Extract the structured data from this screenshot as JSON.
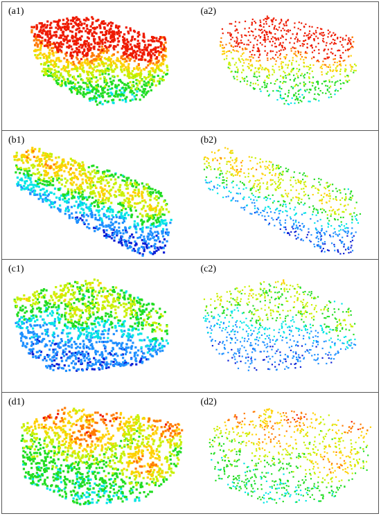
{
  "panels": [
    {
      "label": "(a1)",
      "shape": "block",
      "density": 1.0
    },
    {
      "label": "(a2)",
      "shape": "block",
      "density": 0.6
    },
    {
      "label": "(b1)",
      "shape": "strip",
      "density": 1.0
    },
    {
      "label": "(b2)",
      "shape": "strip",
      "density": 0.6
    },
    {
      "label": "(c1)",
      "shape": "mound",
      "density": 1.0
    },
    {
      "label": "(c2)",
      "shape": "mound",
      "density": 0.6
    },
    {
      "label": "(d1)",
      "shape": "slab",
      "density": 1.0
    },
    {
      "label": "(d2)",
      "shape": "slab",
      "density": 0.6
    }
  ],
  "colormap": [
    "#0a1fd6",
    "#1e90ff",
    "#00e5e5",
    "#22dd22",
    "#c8f000",
    "#ffd000",
    "#ff7a00",
    "#ee1a00"
  ]
}
